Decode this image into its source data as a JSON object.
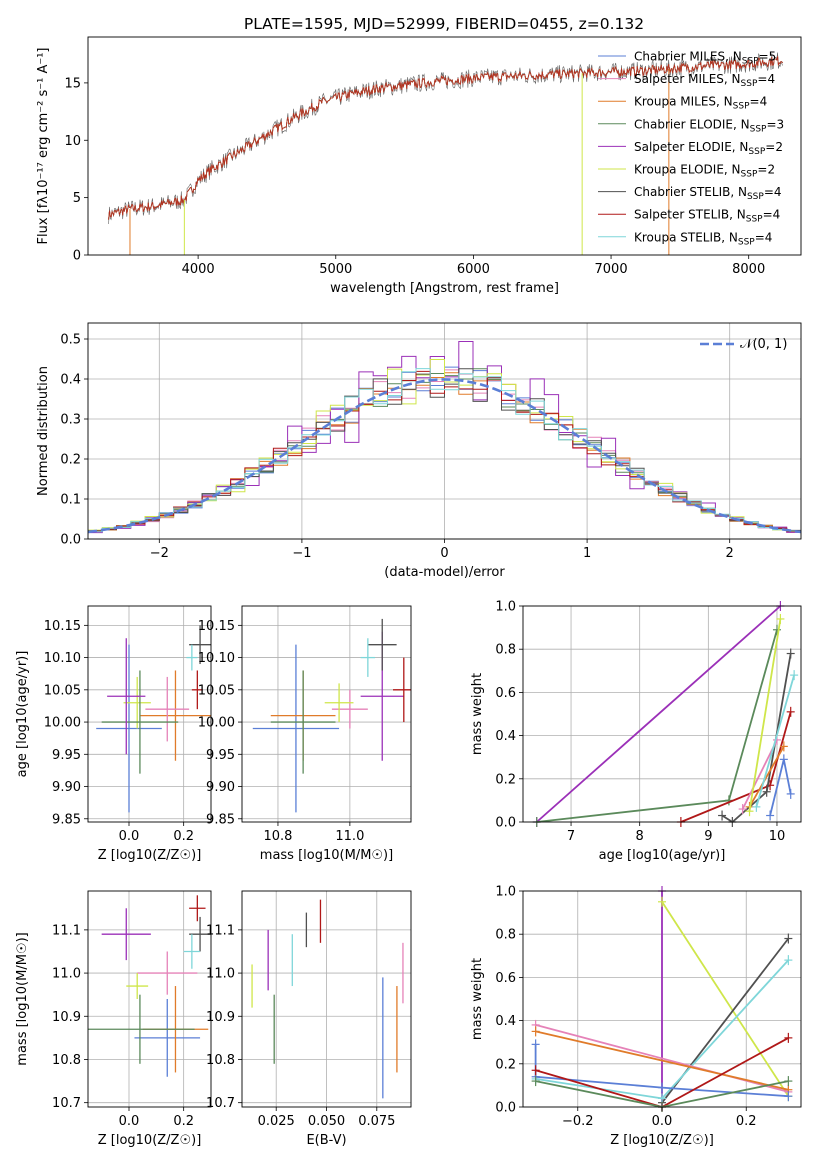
{
  "colors": {
    "blue": "#5b7fd6",
    "orange": "#e07b2a",
    "green": "#5b8a5b",
    "purple": "#9b30b8",
    "yellow": "#cfe64a",
    "dark": "#505050",
    "red": "#b01818",
    "cyan": "#7fd6d9",
    "pink": "#e582b8"
  },
  "chart_data": [
    {
      "type": "line",
      "title": "PLATE=1595, MJD=52999, FIBERID=0455, z=0.132",
      "xlabel": "wavelength [Angstrom, rest frame]",
      "ylabel": "Flux [fλ10⁻¹⁷ erg cm⁻² s⁻¹ A⁻¹]",
      "xlim": [
        3200,
        8380
      ],
      "ylim": [
        0,
        19
      ],
      "xticks": [
        "4000",
        "5000",
        "6000",
        "7000",
        "8000"
      ],
      "yticks": [
        "0",
        "5",
        "10",
        "15"
      ],
      "legend_position": "upper-right",
      "series": [
        {
          "name": "Chabrier MILES, NSSP=5",
          "color": "blue"
        },
        {
          "name": "Salpeter MILES, NSSP=4",
          "color": "pink"
        },
        {
          "name": "Kroupa MILES, NSSP=4",
          "color": "orange"
        },
        {
          "name": "Chabrier ELODIE, NSSP=3",
          "color": "green"
        },
        {
          "name": "Salpeter ELODIE, NSSP=2",
          "color": "purple"
        },
        {
          "name": "Kroupa ELODIE, NSSP=2",
          "color": "yellow"
        },
        {
          "name": "Chabrier STELIB, NSSP=4",
          "color": "dark"
        },
        {
          "name": "Salpeter STELIB, NSSP=4",
          "color": "red"
        },
        {
          "name": "Kroupa STELIB, NSSP=4",
          "color": "cyan"
        }
      ],
      "spectrum_trend": [
        [
          3350,
          3.5
        ],
        [
          3500,
          4.0
        ],
        [
          3700,
          4.3
        ],
        [
          3900,
          4.8
        ],
        [
          4000,
          6.5
        ],
        [
          4100,
          7.5
        ],
        [
          4300,
          9.0
        ],
        [
          4500,
          10.5
        ],
        [
          4700,
          12.0
        ],
        [
          4900,
          13.3
        ],
        [
          5100,
          14.0
        ],
        [
          5300,
          14.5
        ],
        [
          5500,
          14.8
        ],
        [
          5700,
          15.1
        ],
        [
          5900,
          15.3
        ],
        [
          6100,
          15.5
        ],
        [
          6300,
          15.6
        ],
        [
          6500,
          15.7
        ],
        [
          6700,
          15.8
        ],
        [
          6900,
          15.9
        ],
        [
          7100,
          16.0
        ],
        [
          7300,
          16.1
        ],
        [
          7500,
          16.3
        ],
        [
          7700,
          16.5
        ],
        [
          7900,
          16.6
        ],
        [
          8100,
          16.8
        ],
        [
          8250,
          17.0
        ]
      ]
    },
    {
      "type": "line",
      "xlabel": "(data-model)/error",
      "ylabel": "Normed distribution",
      "xlim": [
        -2.5,
        2.5
      ],
      "ylim": [
        0,
        0.54
      ],
      "xticks": [
        "−2",
        "−1",
        "0",
        "1",
        "2"
      ],
      "yticks": [
        "0.0",
        "0.1",
        "0.2",
        "0.3",
        "0.4",
        "0.5"
      ],
      "grid": true,
      "legend": "𝒩(0, 1)",
      "legend_position": "upper-right",
      "series": [
        {
          "name": "N(0,1)",
          "color": "blue",
          "style": "dashed",
          "mu": 0,
          "sigma": 1
        }
      ]
    },
    {
      "type": "scatter",
      "xlabel": "Z [log10(Z/Z☉)]",
      "ylabel": "age [log10(age/yr)]",
      "xlim": [
        -0.15,
        0.3
      ],
      "ylim": [
        9.845,
        10.18
      ],
      "xticks": [
        "0.0",
        "0.2"
      ],
      "yticks": [
        "9.85",
        "9.90",
        "9.95",
        "10.00",
        "10.05",
        "10.10",
        "10.15"
      ],
      "grid": true,
      "points": [
        {
          "x": 0.0,
          "y": 9.99,
          "xerr": 0.12,
          "yerr": 0.13,
          "color": "blue"
        },
        {
          "x": 0.17,
          "y": 10.01,
          "xerr": 0.13,
          "yerr": 0.07,
          "color": "orange"
        },
        {
          "x": 0.14,
          "y": 10.02,
          "xerr": 0.08,
          "yerr": 0.05,
          "color": "pink"
        },
        {
          "x": 0.03,
          "y": 10.03,
          "xerr": 0.05,
          "yerr": 0.04,
          "color": "yellow"
        },
        {
          "x": 0.04,
          "y": 10.0,
          "xerr": 0.14,
          "yerr": 0.08,
          "color": "green"
        },
        {
          "x": -0.01,
          "y": 10.04,
          "xerr": 0.07,
          "yerr": 0.09,
          "color": "purple"
        },
        {
          "x": 0.26,
          "y": 10.12,
          "xerr": 0.04,
          "yerr": 0.03,
          "color": "dark"
        },
        {
          "x": 0.25,
          "y": 10.05,
          "xerr": 0.02,
          "yerr": 0.03,
          "color": "red"
        },
        {
          "x": 0.23,
          "y": 10.1,
          "xerr": 0.02,
          "yerr": 0.02,
          "color": "cyan"
        }
      ]
    },
    {
      "type": "scatter",
      "xlabel": "mass [log10(M/M☉)]",
      "xlim": [
        10.7,
        11.17
      ],
      "ylim": [
        9.845,
        10.18
      ],
      "xticks": [
        "10.8",
        "11.0"
      ],
      "yticks": [
        "9.85",
        "9.90",
        "9.95",
        "10.00",
        "10.05",
        "10.10",
        "10.15"
      ],
      "grid": true,
      "points": [
        {
          "x": 10.85,
          "y": 9.99,
          "xerr": 0.12,
          "yerr": 0.13,
          "color": "blue"
        },
        {
          "x": 10.87,
          "y": 10.01,
          "xerr": 0.09,
          "yerr": 0.07,
          "color": "orange"
        },
        {
          "x": 11.0,
          "y": 10.02,
          "xerr": 0.05,
          "yerr": 0.03,
          "color": "pink"
        },
        {
          "x": 10.97,
          "y": 10.03,
          "xerr": 0.04,
          "yerr": 0.03,
          "color": "yellow"
        },
        {
          "x": 10.87,
          "y": 10.0,
          "xerr": 0.09,
          "yerr": 0.08,
          "color": "green"
        },
        {
          "x": 11.09,
          "y": 10.04,
          "xerr": 0.06,
          "yerr": 0.1,
          "color": "purple"
        },
        {
          "x": 11.09,
          "y": 10.12,
          "xerr": 0.04,
          "yerr": 0.04,
          "color": "dark"
        },
        {
          "x": 11.15,
          "y": 10.05,
          "xerr": 0.03,
          "yerr": 0.05,
          "color": "red"
        },
        {
          "x": 11.05,
          "y": 10.1,
          "xerr": 0.02,
          "yerr": 0.03,
          "color": "cyan"
        }
      ]
    },
    {
      "type": "line",
      "xlabel": "age [log10(age/yr)]",
      "ylabel": "mass weight",
      "xlim": [
        6.3,
        10.35
      ],
      "ylim": [
        0,
        1
      ],
      "xticks": [
        "7",
        "8",
        "9",
        "10"
      ],
      "yticks": [
        "0.0",
        "0.2",
        "0.4",
        "0.6",
        "0.8",
        "1.0"
      ],
      "grid": true,
      "series": [
        {
          "color": "purple",
          "points": [
            [
              6.5,
              0.0
            ],
            [
              10.05,
              1.0
            ]
          ]
        },
        {
          "color": "green",
          "points": [
            [
              6.5,
              0.0
            ],
            [
              9.3,
              0.1
            ],
            [
              10.0,
              0.89
            ]
          ]
        },
        {
          "color": "red",
          "points": [
            [
              8.6,
              0.0
            ],
            [
              9.9,
              0.17
            ],
            [
              10.2,
              0.51
            ]
          ]
        },
        {
          "color": "dark",
          "points": [
            [
              9.2,
              0.03
            ],
            [
              9.35,
              0.0
            ],
            [
              9.85,
              0.14
            ],
            [
              10.2,
              0.78
            ]
          ]
        },
        {
          "color": "blue",
          "points": [
            [
              9.9,
              0.03
            ],
            [
              10.1,
              0.29
            ],
            [
              10.2,
              0.13
            ]
          ]
        },
        {
          "color": "orange",
          "points": [
            [
              9.6,
              0.07
            ],
            [
              10.1,
              0.35
            ]
          ]
        },
        {
          "color": "pink",
          "points": [
            [
              9.5,
              0.06
            ],
            [
              10.0,
              0.38
            ]
          ]
        },
        {
          "color": "yellow",
          "points": [
            [
              9.6,
              0.05
            ],
            [
              10.05,
              0.94
            ]
          ]
        },
        {
          "color": "cyan",
          "points": [
            [
              9.7,
              0.07
            ],
            [
              10.25,
              0.68
            ]
          ]
        }
      ]
    },
    {
      "type": "scatter",
      "xlabel": "Z [log10(Z/Z☉)]",
      "ylabel": "mass [log10(M/M☉)]",
      "xlim": [
        -0.15,
        0.3
      ],
      "ylim": [
        10.69,
        11.19
      ],
      "xticks": [
        "0.0",
        "0.2"
      ],
      "yticks": [
        "10.7",
        "10.8",
        "10.9",
        "11.0",
        "11.1"
      ],
      "grid": true,
      "points": [
        {
          "x": 0.14,
          "y": 10.85,
          "xerr": 0.12,
          "yerr": 0.09,
          "color": "blue"
        },
        {
          "x": 0.17,
          "y": 10.87,
          "xerr": 0.12,
          "yerr": 0.1,
          "color": "orange"
        },
        {
          "x": 0.14,
          "y": 11.0,
          "xerr": 0.11,
          "yerr": 0.05,
          "color": "pink"
        },
        {
          "x": 0.03,
          "y": 10.97,
          "xerr": 0.04,
          "yerr": 0.03,
          "color": "yellow"
        },
        {
          "x": 0.04,
          "y": 10.87,
          "xerr": 0.2,
          "yerr": 0.08,
          "color": "green"
        },
        {
          "x": -0.01,
          "y": 11.09,
          "xerr": 0.09,
          "yerr": 0.06,
          "color": "purple"
        },
        {
          "x": 0.26,
          "y": 11.09,
          "xerr": 0.04,
          "yerr": 0.04,
          "color": "dark"
        },
        {
          "x": 0.25,
          "y": 11.15,
          "xerr": 0.03,
          "yerr": 0.03,
          "color": "red"
        },
        {
          "x": 0.23,
          "y": 11.05,
          "xerr": 0.03,
          "yerr": 0.04,
          "color": "cyan"
        }
      ]
    },
    {
      "type": "scatter",
      "xlabel": "E(B-V)",
      "xlim": [
        0.008,
        0.092
      ],
      "ylim": [
        10.69,
        11.19
      ],
      "xticks": [
        "0.025",
        "0.050",
        "0.075"
      ],
      "yticks": [
        "10.7",
        "10.8",
        "10.9",
        "11.0",
        "11.1"
      ],
      "grid": true,
      "points": [
        {
          "x": 0.078,
          "y": 10.85,
          "yerr": 0.14,
          "color": "blue"
        },
        {
          "x": 0.085,
          "y": 10.87,
          "yerr": 0.1,
          "color": "orange"
        },
        {
          "x": 0.088,
          "y": 11.0,
          "yerr": 0.07,
          "color": "pink"
        },
        {
          "x": 0.013,
          "y": 10.97,
          "yerr": 0.05,
          "color": "yellow"
        },
        {
          "x": 0.024,
          "y": 10.87,
          "yerr": 0.08,
          "color": "green"
        },
        {
          "x": 0.021,
          "y": 11.03,
          "yerr": 0.07,
          "color": "purple"
        },
        {
          "x": 0.04,
          "y": 11.1,
          "yerr": 0.04,
          "color": "dark"
        },
        {
          "x": 0.047,
          "y": 11.12,
          "yerr": 0.05,
          "color": "red"
        },
        {
          "x": 0.033,
          "y": 11.03,
          "yerr": 0.06,
          "color": "cyan"
        }
      ]
    },
    {
      "type": "line",
      "xlabel": "Z [log10(Z/Z☉)]",
      "ylabel": "mass weight",
      "xlim": [
        -0.33,
        0.33
      ],
      "ylim": [
        0,
        1
      ],
      "xticks": [
        "−0.2",
        "0.0",
        "0.2"
      ],
      "yticks": [
        "0.0",
        "0.2",
        "0.4",
        "0.6",
        "0.8",
        "1.0"
      ],
      "grid": true,
      "series": [
        {
          "color": "purple",
          "points": [
            [
              0.0,
              1.0
            ],
            [
              0.0,
              0.0
            ]
          ]
        },
        {
          "color": "yellow",
          "points": [
            [
              0.0,
              0.95
            ],
            [
              0.3,
              0.05
            ]
          ]
        },
        {
          "color": "dark",
          "points": [
            [
              0.0,
              0.02
            ],
            [
              0.3,
              0.78
            ]
          ]
        },
        {
          "color": "cyan",
          "points": [
            [
              -0.3,
              0.13
            ],
            [
              0.0,
              0.04
            ],
            [
              0.3,
              0.68
            ]
          ]
        },
        {
          "color": "pink",
          "points": [
            [
              -0.3,
              0.38
            ],
            [
              0.3,
              0.07
            ]
          ]
        },
        {
          "color": "orange",
          "points": [
            [
              -0.3,
              0.35
            ],
            [
              0.3,
              0.08
            ]
          ]
        },
        {
          "color": "blue",
          "points": [
            [
              -0.3,
              0.29
            ],
            [
              -0.3,
              0.14
            ],
            [
              0.0,
              0.09
            ],
            [
              0.3,
              0.05
            ]
          ]
        },
        {
          "color": "red",
          "points": [
            [
              -0.3,
              0.17
            ],
            [
              0.0,
              0.0
            ],
            [
              0.3,
              0.32
            ]
          ]
        },
        {
          "color": "green",
          "points": [
            [
              -0.3,
              0.12
            ],
            [
              0.0,
              0.0
            ],
            [
              0.3,
              0.12
            ]
          ]
        }
      ]
    }
  ]
}
